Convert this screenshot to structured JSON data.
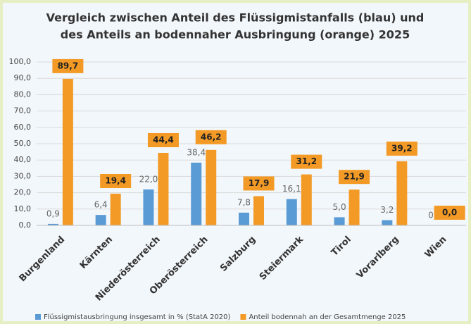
{
  "chart_data": {
    "type": "bar",
    "title": [
      "Vergleich zwischen Anteil des Flüssigmistanfalls (blau) und",
      "des Anteils an bodennaher Ausbringung (orange) 2025"
    ],
    "categories": [
      "Burgenland",
      "Kärnten",
      "Niederösterreich",
      "Oberösterreich",
      "Salzburg",
      "Steiermark",
      "Tirol",
      "Vorarlberg",
      "Wien"
    ],
    "series": [
      {
        "name": "Flüssigmistausbringung insgesamt in % (StatA 2020)",
        "color": "#5b9bd5",
        "values": [
          0.9,
          6.4,
          22.0,
          38.4,
          7.8,
          16.1,
          5.0,
          3.2,
          0.0
        ],
        "value_labels": [
          "0,9",
          "6,4",
          "22,0",
          "38,4",
          "7,8",
          "16,1",
          "5,0",
          "3,2",
          "0,0"
        ]
      },
      {
        "name": "Anteil bodennah an der Gesamtmenge 2025",
        "color": "#f39a26",
        "values": [
          89.7,
          19.4,
          44.4,
          46.2,
          17.9,
          31.2,
          21.9,
          39.2,
          0.0
        ],
        "value_labels": [
          "89,7",
          "19,4",
          "44,4",
          "46,2",
          "17,9",
          "31,2",
          "21,9",
          "39,2",
          "0,0"
        ]
      }
    ],
    "ylim": [
      0,
      100
    ],
    "yticks": [
      {
        "value": 0,
        "label": "0,0"
      },
      {
        "value": 10,
        "label": "10,0"
      },
      {
        "value": 20,
        "label": "20,0"
      },
      {
        "value": 30,
        "label": "30,0"
      },
      {
        "value": 40,
        "label": "40,0"
      },
      {
        "value": 50,
        "label": "50,0"
      },
      {
        "value": 60,
        "label": "60,0"
      },
      {
        "value": 70,
        "label": "70,0"
      },
      {
        "value": 80,
        "label": "80,0"
      },
      {
        "value": 90,
        "label": "90,0"
      },
      {
        "value": 100,
        "label": "100,0"
      }
    ],
    "grid": true
  }
}
